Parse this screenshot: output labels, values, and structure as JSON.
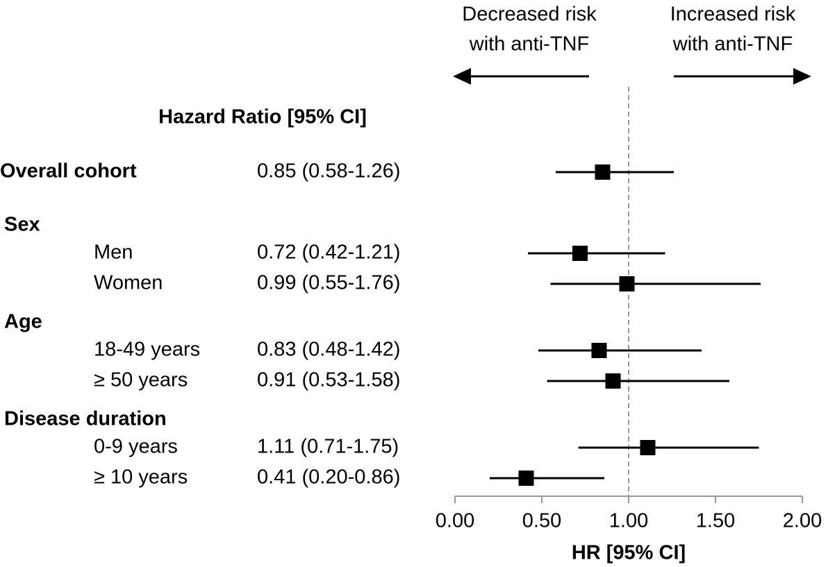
{
  "chart_data": {
    "type": "forest",
    "title": "Hazard Ratio [95% CI]",
    "xlabel": "HR [95% CI]",
    "annotations": [
      [
        "Decreased risk",
        "with anti-TNF"
      ],
      [
        "Increased risk",
        "with anti-TNF"
      ]
    ],
    "xlim": [
      0,
      2
    ],
    "xticks": [
      {
        "value": 0,
        "label": "0.00"
      },
      {
        "value": 0.5,
        "label": "0.50"
      },
      {
        "value": 1,
        "label": "1.00"
      },
      {
        "value": 1.5,
        "label": "1.50"
      },
      {
        "value": 2,
        "label": "2.00"
      }
    ],
    "reference": 1,
    "color": "#000000",
    "groups": [
      {
        "name": "Overall cohort",
        "values": [
          0.85
        ],
        "lower": [
          0.58
        ],
        "upper": [
          1.26
        ],
        "value_labels": [
          "0.85 (0.58-1.26)"
        ]
      },
      {
        "name": "Sex",
        "categories": [
          "Men",
          "Women"
        ],
        "values": [
          0.72,
          0.99
        ],
        "lower": [
          0.42,
          0.55
        ],
        "upper": [
          1.21,
          1.76
        ],
        "value_labels": [
          "0.72 (0.42-1.21)",
          "0.99 (0.55-1.76)"
        ]
      },
      {
        "name": "Age",
        "categories": [
          "18-49 years",
          "≥ 50 years"
        ],
        "values": [
          0.83,
          0.91
        ],
        "lower": [
          0.48,
          0.53
        ],
        "upper": [
          1.42,
          1.58
        ],
        "value_labels": [
          "0.83 (0.48-1.42)",
          "0.91 (0.53-1.58)"
        ]
      },
      {
        "name": "Disease duration",
        "categories": [
          "0-9 years",
          "≥ 10 years"
        ],
        "values": [
          1.11,
          0.41
        ],
        "lower": [
          0.71,
          0.2
        ],
        "upper": [
          1.75,
          0.86
        ],
        "value_labels": [
          "1.11 (0.71-1.75)",
          "0.41 (0.20-0.86)"
        ]
      }
    ]
  }
}
